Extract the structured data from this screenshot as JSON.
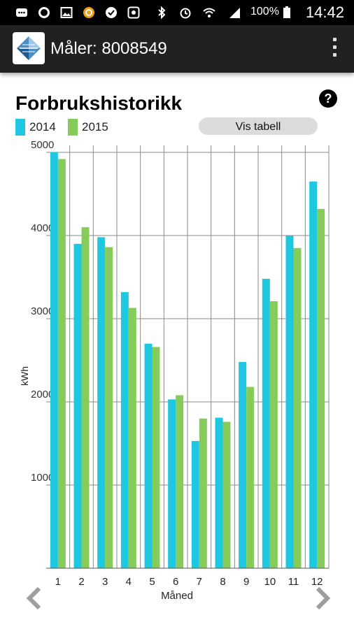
{
  "status_bar": {
    "battery": "100%",
    "time": "14:42",
    "icons": [
      "message-icon",
      "circle-icon",
      "image-icon",
      "app-icon",
      "check-icon",
      "photo-icon",
      "bluetooth-icon",
      "alarm-icon",
      "wifi-icon",
      "signal-icon",
      "battery-icon"
    ]
  },
  "app_bar": {
    "title": "Måler: 8008549",
    "logo_icon": "app-logo-icon",
    "menu_icon": "overflow-menu-icon"
  },
  "page": {
    "title": "Forbrukshistorikk",
    "help_label": "?",
    "table_button": "Vis tabell",
    "prev_icon": "chevron-left-icon",
    "next_icon": "chevron-right-icon"
  },
  "colors": {
    "series_2014": "#1ec8e0",
    "series_2015": "#86cc5b",
    "grid": "#8a8a8a"
  },
  "chart_data": {
    "type": "bar",
    "categories": [
      "1",
      "2",
      "3",
      "4",
      "5",
      "6",
      "7",
      "8",
      "9",
      "10",
      "11",
      "12"
    ],
    "series": [
      {
        "name": "2014",
        "values": [
          5000,
          3900,
          3980,
          3320,
          2700,
          2030,
          1530,
          1810,
          2480,
          3480,
          4000,
          4650
        ]
      },
      {
        "name": "2015",
        "values": [
          4920,
          4100,
          3860,
          3130,
          2660,
          2080,
          1800,
          1760,
          2180,
          3210,
          3850,
          4320
        ]
      }
    ],
    "yticks": [
      "1000",
      "2000",
      "3000",
      "4000",
      "5000"
    ],
    "ylabel": "kWh",
    "xlabel": "Måned",
    "ylim": [
      0,
      5000
    ],
    "grid": true,
    "legend": "top-left"
  }
}
